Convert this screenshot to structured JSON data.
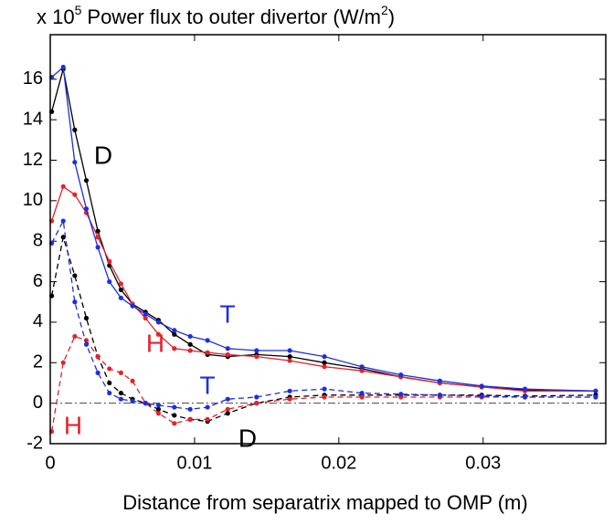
{
  "chart_data": {
    "type": "line",
    "title_parts": [
      "x 10",
      "5",
      "Power flux to outer divertor (W/m",
      "2",
      ")"
    ],
    "x_label": "Distance from separatrix mapped to OMP (m)",
    "x": [
      0.0001,
      0.0009,
      0.0017,
      0.0025,
      0.0033,
      0.0041,
      0.0049,
      0.0057,
      0.0066,
      0.0075,
      0.0086,
      0.0097,
      0.0109,
      0.0123,
      0.0143,
      0.0166,
      0.019,
      0.0216,
      0.0243,
      0.027,
      0.0299,
      0.0329,
      0.0378
    ],
    "series": [
      {
        "color": "#000000",
        "dashed": false,
        "values": [
          14.4,
          16.5,
          13.5,
          11.0,
          8.5,
          6.8,
          5.6,
          4.9,
          4.5,
          4.1,
          3.4,
          2.9,
          2.4,
          2.3,
          2.4,
          2.3,
          2.0,
          1.7,
          1.3,
          1.0,
          0.8,
          0.65,
          0.6
        ]
      },
      {
        "color": "#e3242b",
        "dashed": false,
        "values": [
          9.0,
          10.7,
          10.3,
          9.4,
          8.2,
          7.0,
          5.9,
          4.9,
          4.2,
          3.4,
          2.7,
          2.6,
          2.5,
          2.4,
          2.3,
          2.1,
          1.8,
          1.6,
          1.3,
          1.0,
          0.8,
          0.6,
          0.6
        ]
      },
      {
        "color": "#1c2fe0",
        "dashed": false,
        "values": [
          16.1,
          16.6,
          11.9,
          9.6,
          7.7,
          6.0,
          5.2,
          4.8,
          4.4,
          4.0,
          3.6,
          3.3,
          3.1,
          2.7,
          2.6,
          2.6,
          2.3,
          1.8,
          1.4,
          1.1,
          0.85,
          0.7,
          0.6
        ]
      },
      {
        "color": "#000000",
        "dashed": true,
        "values": [
          5.3,
          8.2,
          6.3,
          4.2,
          2.3,
          1.0,
          0.5,
          0.2,
          0.0,
          -0.3,
          -0.6,
          -0.8,
          -0.9,
          -0.5,
          0.0,
          0.3,
          0.4,
          0.4,
          0.4,
          0.4,
          0.4,
          0.35,
          0.4
        ]
      },
      {
        "color": "#e3242b",
        "dashed": true,
        "values": [
          -1.4,
          2.0,
          3.3,
          3.1,
          2.3,
          1.7,
          1.5,
          1.1,
          0.0,
          -0.5,
          -1.0,
          -0.8,
          -0.8,
          -0.3,
          0.0,
          0.2,
          0.3,
          0.3,
          0.3,
          0.3,
          0.3,
          0.3,
          0.3
        ]
      },
      {
        "color": "#1c2fe0",
        "dashed": true,
        "values": [
          7.9,
          9.0,
          5.0,
          2.9,
          1.5,
          0.5,
          0.2,
          0.1,
          0.0,
          -0.1,
          -0.2,
          -0.3,
          -0.2,
          0.2,
          0.3,
          0.6,
          0.7,
          0.5,
          0.45,
          0.4,
          0.35,
          0.3,
          0.3
        ]
      }
    ],
    "annotations": [
      {
        "text": "D",
        "color": "#000000"
      },
      {
        "text": "H",
        "color": "#e3242b"
      },
      {
        "text": "T",
        "color": "#1c2fe0"
      },
      {
        "text": "T",
        "color": "#1c2fe0"
      },
      {
        "text": "H",
        "color": "#e3242b"
      },
      {
        "text": "D",
        "color": "#000000"
      }
    ],
    "reference_line": 0,
    "xlim": [
      0,
      0.0385
    ],
    "xticks": [
      0,
      0.01,
      0.02,
      0.03
    ],
    "ylim": [
      -2,
      18.2
    ],
    "yticks": [
      -2,
      0,
      2,
      4,
      6,
      8,
      10,
      12,
      14,
      16
    ]
  }
}
